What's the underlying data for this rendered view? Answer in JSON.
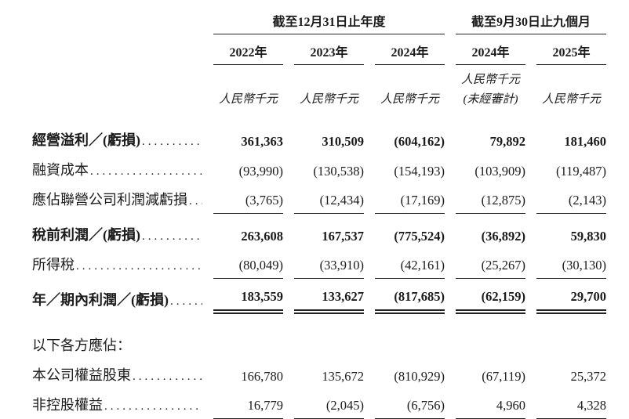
{
  "header": {
    "group_annual": "截至12月31日止年度",
    "group_nine_months": "截至9月30日止九個月",
    "years": [
      "2022年",
      "2023年",
      "2024年",
      "2024年",
      "2025年"
    ],
    "unit": "人民幣千元",
    "unaudited_note": "(未經審計)"
  },
  "dot_leader": "................................................",
  "rows": [
    {
      "label": "經營溢利／(虧損)",
      "values": [
        "361,363",
        "310,509",
        "(604,162)",
        "79,892",
        "181,460"
      ]
    },
    {
      "label": "融資成本",
      "values": [
        "(93,990)",
        "(130,538)",
        "(154,193)",
        "(103,909)",
        "(119,487)"
      ]
    },
    {
      "label": "應佔聯營公司利潤減虧損",
      "values": [
        "(3,765)",
        "(12,434)",
        "(17,169)",
        "(12,875)",
        "(2,143)"
      ]
    },
    {
      "label": "稅前利潤／(虧損)",
      "values": [
        "263,608",
        "167,537",
        "(775,524)",
        "(36,892)",
        "59,830"
      ]
    },
    {
      "label": "所得稅",
      "values": [
        "(80,049)",
        "(33,910)",
        "(42,161)",
        "(25,267)",
        "(30,130)"
      ]
    },
    {
      "label": "年／期內利潤／(虧損)",
      "values": [
        "183,559",
        "133,627",
        "(817,685)",
        "(62,159)",
        "29,700"
      ]
    },
    {
      "label": "以下各方應佔：",
      "values": []
    },
    {
      "label": "本公司權益股東",
      "values": [
        "166,780",
        "135,672",
        "(810,929)",
        "(67,119)",
        "25,372"
      ]
    },
    {
      "label": "非控股權益",
      "values": [
        "16,779",
        "(2,045)",
        "(6,756)",
        "4,960",
        "4,328"
      ]
    }
  ]
}
